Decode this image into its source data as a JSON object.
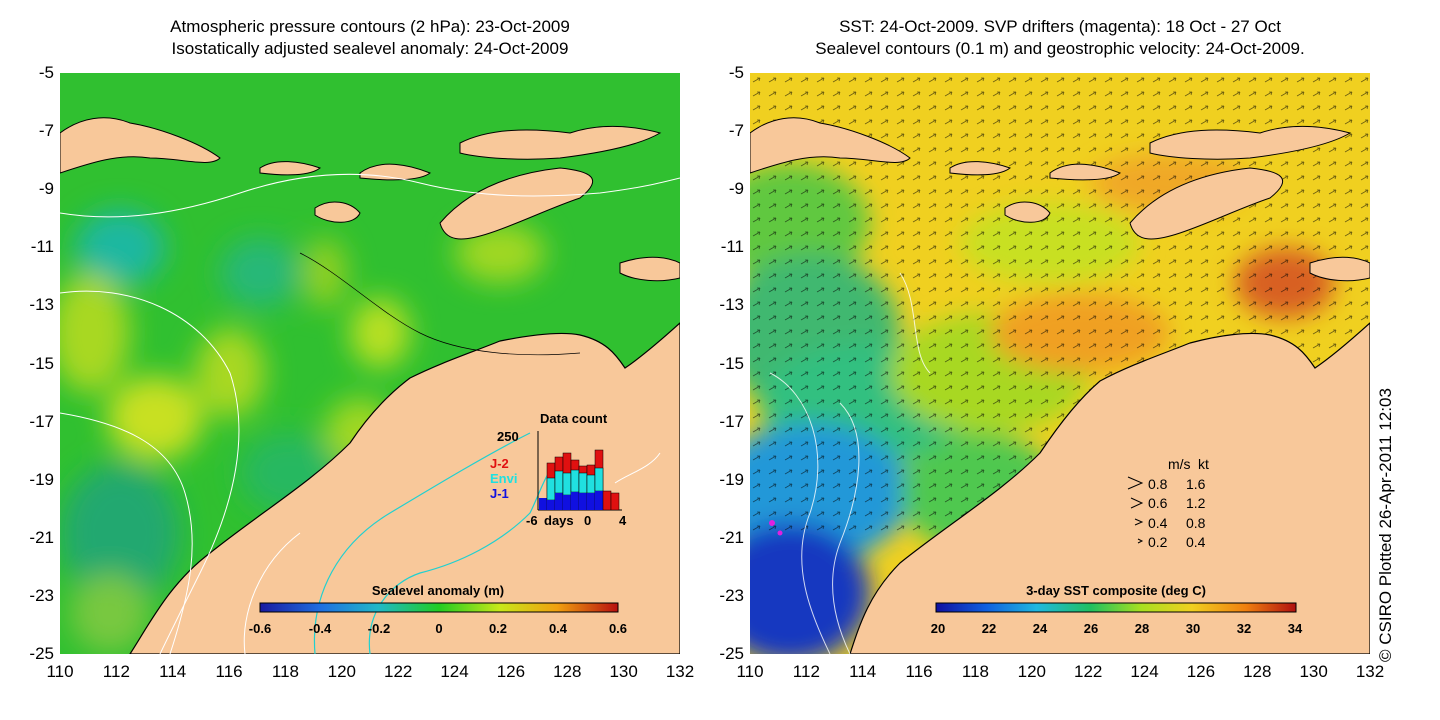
{
  "left_panel": {
    "title_line1": "Atmospheric pressure contours (2 hPa): 23-Oct-2009",
    "title_line2": "Isostatically adjusted sealevel anomaly: 24-Oct-2009",
    "colorbar": {
      "label": "Sealevel anomaly (m)",
      "ticks": [
        "-0.6",
        "-0.4",
        "-0.2",
        "0",
        "0.2",
        "0.4",
        "0.6"
      ]
    },
    "inset": {
      "title": "Data count",
      "ymax_label": "250",
      "xlabel": "days",
      "xticks": [
        "-6",
        "0",
        "4"
      ],
      "legend": [
        {
          "label": "J-2",
          "color": "#e01010"
        },
        {
          "label": "Envi",
          "color": "#20e0e0"
        },
        {
          "label": "J-1",
          "color": "#1010e0"
        }
      ]
    }
  },
  "right_panel": {
    "title_line1": "SST: 24-Oct-2009. SVP drifters (magenta): 18 Oct - 27 Oct",
    "title_line2": "Sealevel contours (0.1 m) and geostrophic velocity: 24-Oct-2009.",
    "colorbar": {
      "label": "3-day SST composite (deg C)",
      "ticks": [
        "20",
        "22",
        "24",
        "26",
        "28",
        "30",
        "32",
        "34"
      ]
    },
    "velocity_key": {
      "header": [
        "m/s",
        "kt"
      ],
      "rows": [
        [
          "0.8",
          "1.6"
        ],
        [
          "0.6",
          "1.2"
        ],
        [
          "0.4",
          "0.8"
        ],
        [
          "0.2",
          "0.4"
        ]
      ]
    }
  },
  "axes": {
    "x_ticks": [
      "110",
      "112",
      "114",
      "116",
      "118",
      "120",
      "122",
      "124",
      "126",
      "128",
      "130",
      "132"
    ],
    "y_ticks": [
      "-5",
      "-7",
      "-9",
      "-11",
      "-13",
      "-15",
      "-17",
      "-19",
      "-21",
      "-23",
      "-25"
    ]
  },
  "credit": "© CSIRO Plotted 26-Apr-2011 12:03",
  "colors": {
    "land": "#f8c89a",
    "sla_zero": "#22cc22",
    "coast": "#000000",
    "pressure_contour": "#ffffff",
    "depth_contour": "#20d0d0"
  }
}
